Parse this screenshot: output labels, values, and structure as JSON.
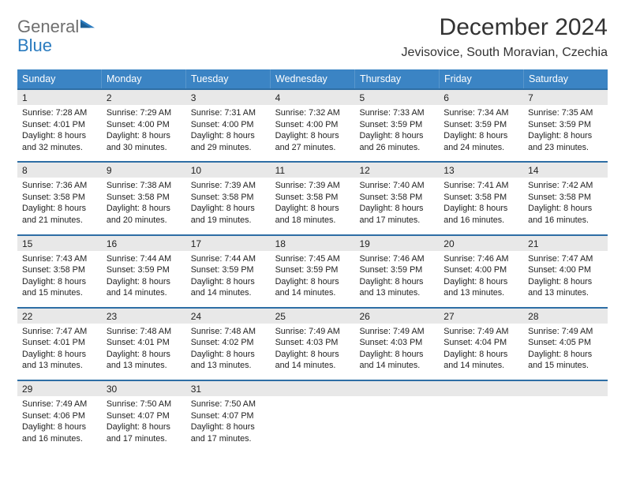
{
  "logo": {
    "line1": "General",
    "line2": "Blue"
  },
  "title": "December 2024",
  "location": "Jevisovice, South Moravian, Czechia",
  "colors": {
    "header_bg": "#3b84c4",
    "sep": "#2e6ea5",
    "daynum_bg": "#e8e8e8",
    "logo_gray": "#6f6f6f",
    "logo_blue": "#2a7bbf"
  },
  "fonts": {
    "title_size": 30,
    "location_size": 16,
    "weekday_size": 12.5,
    "daynum_size": 12,
    "detail_size": 10.8
  },
  "weekdays": [
    "Sunday",
    "Monday",
    "Tuesday",
    "Wednesday",
    "Thursday",
    "Friday",
    "Saturday"
  ],
  "weeks": [
    [
      {
        "day": "1",
        "sunrise": "Sunrise: 7:28 AM",
        "sunset": "Sunset: 4:01 PM",
        "daylight": "Daylight: 8 hours and 32 minutes."
      },
      {
        "day": "2",
        "sunrise": "Sunrise: 7:29 AM",
        "sunset": "Sunset: 4:00 PM",
        "daylight": "Daylight: 8 hours and 30 minutes."
      },
      {
        "day": "3",
        "sunrise": "Sunrise: 7:31 AM",
        "sunset": "Sunset: 4:00 PM",
        "daylight": "Daylight: 8 hours and 29 minutes."
      },
      {
        "day": "4",
        "sunrise": "Sunrise: 7:32 AM",
        "sunset": "Sunset: 4:00 PM",
        "daylight": "Daylight: 8 hours and 27 minutes."
      },
      {
        "day": "5",
        "sunrise": "Sunrise: 7:33 AM",
        "sunset": "Sunset: 3:59 PM",
        "daylight": "Daylight: 8 hours and 26 minutes."
      },
      {
        "day": "6",
        "sunrise": "Sunrise: 7:34 AM",
        "sunset": "Sunset: 3:59 PM",
        "daylight": "Daylight: 8 hours and 24 minutes."
      },
      {
        "day": "7",
        "sunrise": "Sunrise: 7:35 AM",
        "sunset": "Sunset: 3:59 PM",
        "daylight": "Daylight: 8 hours and 23 minutes."
      }
    ],
    [
      {
        "day": "8",
        "sunrise": "Sunrise: 7:36 AM",
        "sunset": "Sunset: 3:58 PM",
        "daylight": "Daylight: 8 hours and 21 minutes."
      },
      {
        "day": "9",
        "sunrise": "Sunrise: 7:38 AM",
        "sunset": "Sunset: 3:58 PM",
        "daylight": "Daylight: 8 hours and 20 minutes."
      },
      {
        "day": "10",
        "sunrise": "Sunrise: 7:39 AM",
        "sunset": "Sunset: 3:58 PM",
        "daylight": "Daylight: 8 hours and 19 minutes."
      },
      {
        "day": "11",
        "sunrise": "Sunrise: 7:39 AM",
        "sunset": "Sunset: 3:58 PM",
        "daylight": "Daylight: 8 hours and 18 minutes."
      },
      {
        "day": "12",
        "sunrise": "Sunrise: 7:40 AM",
        "sunset": "Sunset: 3:58 PM",
        "daylight": "Daylight: 8 hours and 17 minutes."
      },
      {
        "day": "13",
        "sunrise": "Sunrise: 7:41 AM",
        "sunset": "Sunset: 3:58 PM",
        "daylight": "Daylight: 8 hours and 16 minutes."
      },
      {
        "day": "14",
        "sunrise": "Sunrise: 7:42 AM",
        "sunset": "Sunset: 3:58 PM",
        "daylight": "Daylight: 8 hours and 16 minutes."
      }
    ],
    [
      {
        "day": "15",
        "sunrise": "Sunrise: 7:43 AM",
        "sunset": "Sunset: 3:58 PM",
        "daylight": "Daylight: 8 hours and 15 minutes."
      },
      {
        "day": "16",
        "sunrise": "Sunrise: 7:44 AM",
        "sunset": "Sunset: 3:59 PM",
        "daylight": "Daylight: 8 hours and 14 minutes."
      },
      {
        "day": "17",
        "sunrise": "Sunrise: 7:44 AM",
        "sunset": "Sunset: 3:59 PM",
        "daylight": "Daylight: 8 hours and 14 minutes."
      },
      {
        "day": "18",
        "sunrise": "Sunrise: 7:45 AM",
        "sunset": "Sunset: 3:59 PM",
        "daylight": "Daylight: 8 hours and 14 minutes."
      },
      {
        "day": "19",
        "sunrise": "Sunrise: 7:46 AM",
        "sunset": "Sunset: 3:59 PM",
        "daylight": "Daylight: 8 hours and 13 minutes."
      },
      {
        "day": "20",
        "sunrise": "Sunrise: 7:46 AM",
        "sunset": "Sunset: 4:00 PM",
        "daylight": "Daylight: 8 hours and 13 minutes."
      },
      {
        "day": "21",
        "sunrise": "Sunrise: 7:47 AM",
        "sunset": "Sunset: 4:00 PM",
        "daylight": "Daylight: 8 hours and 13 minutes."
      }
    ],
    [
      {
        "day": "22",
        "sunrise": "Sunrise: 7:47 AM",
        "sunset": "Sunset: 4:01 PM",
        "daylight": "Daylight: 8 hours and 13 minutes."
      },
      {
        "day": "23",
        "sunrise": "Sunrise: 7:48 AM",
        "sunset": "Sunset: 4:01 PM",
        "daylight": "Daylight: 8 hours and 13 minutes."
      },
      {
        "day": "24",
        "sunrise": "Sunrise: 7:48 AM",
        "sunset": "Sunset: 4:02 PM",
        "daylight": "Daylight: 8 hours and 13 minutes."
      },
      {
        "day": "25",
        "sunrise": "Sunrise: 7:49 AM",
        "sunset": "Sunset: 4:03 PM",
        "daylight": "Daylight: 8 hours and 14 minutes."
      },
      {
        "day": "26",
        "sunrise": "Sunrise: 7:49 AM",
        "sunset": "Sunset: 4:03 PM",
        "daylight": "Daylight: 8 hours and 14 minutes."
      },
      {
        "day": "27",
        "sunrise": "Sunrise: 7:49 AM",
        "sunset": "Sunset: 4:04 PM",
        "daylight": "Daylight: 8 hours and 14 minutes."
      },
      {
        "day": "28",
        "sunrise": "Sunrise: 7:49 AM",
        "sunset": "Sunset: 4:05 PM",
        "daylight": "Daylight: 8 hours and 15 minutes."
      }
    ],
    [
      {
        "day": "29",
        "sunrise": "Sunrise: 7:49 AM",
        "sunset": "Sunset: 4:06 PM",
        "daylight": "Daylight: 8 hours and 16 minutes."
      },
      {
        "day": "30",
        "sunrise": "Sunrise: 7:50 AM",
        "sunset": "Sunset: 4:07 PM",
        "daylight": "Daylight: 8 hours and 17 minutes."
      },
      {
        "day": "31",
        "sunrise": "Sunrise: 7:50 AM",
        "sunset": "Sunset: 4:07 PM",
        "daylight": "Daylight: 8 hours and 17 minutes."
      },
      {
        "day": "",
        "sunrise": "",
        "sunset": "",
        "daylight": ""
      },
      {
        "day": "",
        "sunrise": "",
        "sunset": "",
        "daylight": ""
      },
      {
        "day": "",
        "sunrise": "",
        "sunset": "",
        "daylight": ""
      },
      {
        "day": "",
        "sunrise": "",
        "sunset": "",
        "daylight": ""
      }
    ]
  ]
}
